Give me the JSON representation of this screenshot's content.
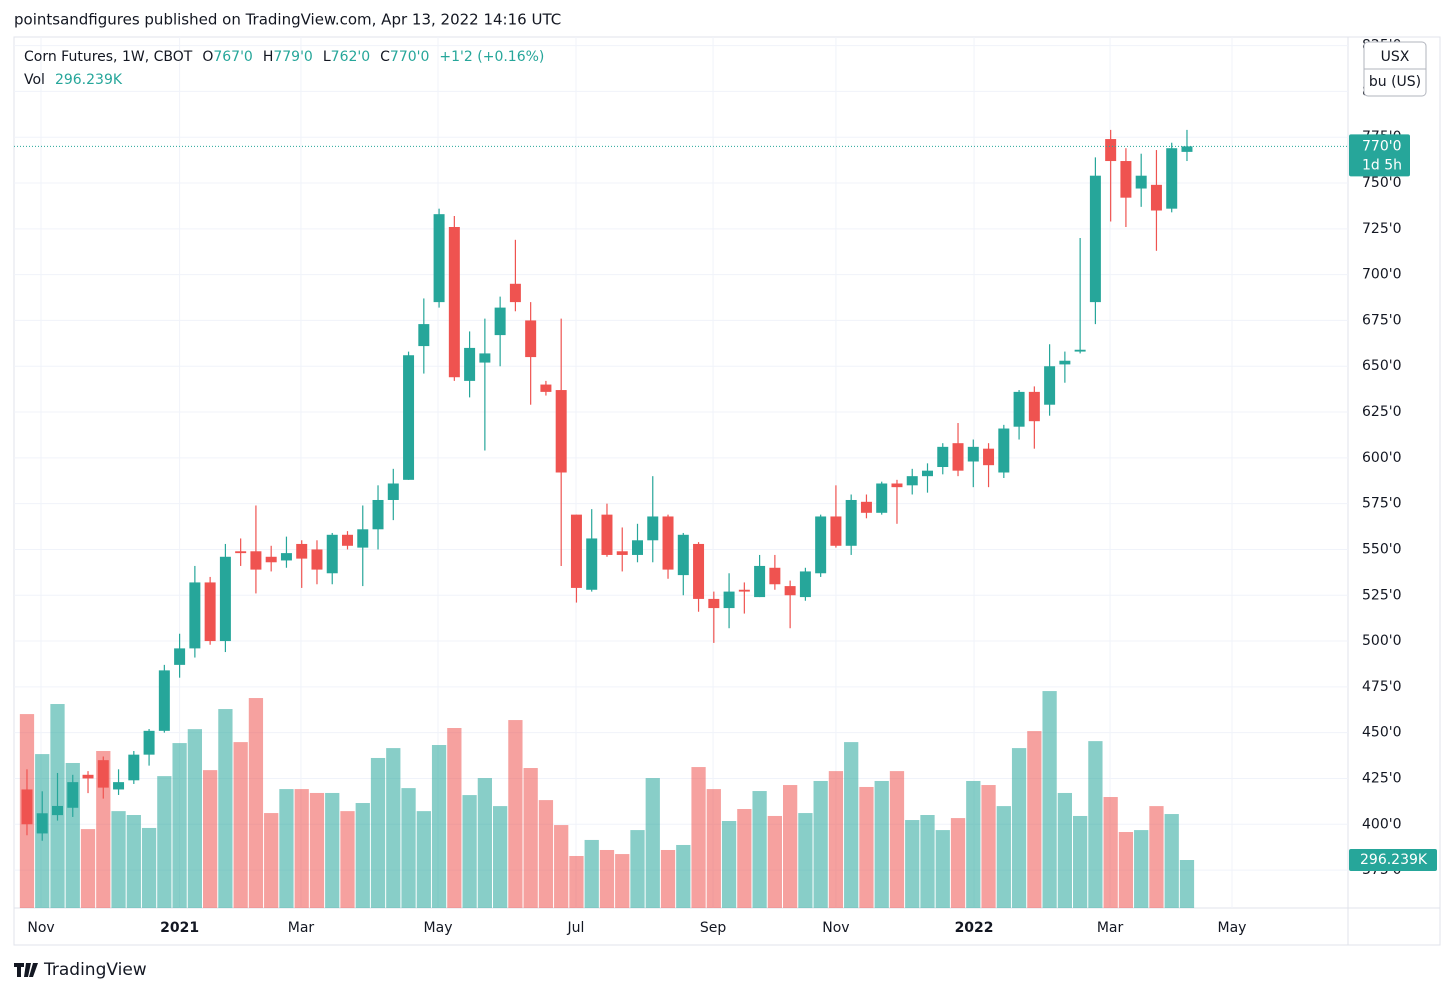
{
  "chart_data": {
    "type": "candlestick",
    "publisher": "pointsandfigures published on TradingView.com, Apr 13, 2022 14:16 UTC",
    "title": "Corn Futures, 1W, CBOT",
    "legend": {
      "ohlc": [
        {
          "key": "O",
          "label": "767'0"
        },
        {
          "key": "H",
          "label": "779'0"
        },
        {
          "key": "L",
          "label": "762'0"
        },
        {
          "key": "C",
          "label": "770'0"
        }
      ],
      "change": "+1'2 (+0.16%)",
      "volume_name": "Vol",
      "volume_label": "296.239K"
    },
    "unit_labels": [
      "USX",
      "bu (US)"
    ],
    "countdown": "1d 5h",
    "brand": "TradingView",
    "up_color": "#26a69a",
    "down_color": "#ef5350",
    "categories": [
      null,
      null,
      null,
      null,
      null,
      null,
      null,
      null,
      null,
      null,
      null,
      null,
      null,
      null,
      null,
      null,
      null,
      null,
      null,
      null,
      null,
      null,
      null,
      null,
      null,
      null,
      null,
      null,
      null,
      null,
      null,
      null,
      null,
      null,
      null,
      null,
      null,
      null,
      null,
      null,
      null,
      null,
      null,
      null,
      null,
      null,
      null,
      null,
      null,
      null,
      null,
      null,
      null,
      null,
      null,
      null,
      null,
      null,
      null,
      null,
      null,
      null,
      null,
      null,
      null,
      null,
      null,
      null,
      null,
      null,
      null,
      null,
      null,
      null,
      null,
      null,
      null
    ],
    "open": [
      419,
      395,
      405,
      409,
      427,
      435,
      419,
      424,
      438,
      451,
      487,
      496,
      532,
      500,
      549,
      549,
      546,
      544,
      553,
      550,
      537,
      558,
      551,
      561,
      577,
      588,
      661,
      685,
      726,
      642,
      652,
      667,
      695,
      675,
      640,
      637,
      569,
      528,
      569,
      549,
      547,
      555,
      568,
      536,
      553,
      523,
      518,
      528,
      524,
      540,
      530,
      524,
      537,
      568,
      552,
      576,
      570,
      586,
      585,
      590,
      595,
      608,
      598,
      605,
      592,
      617,
      636,
      629,
      651,
      658,
      685,
      774,
      762,
      747,
      749,
      736,
      767
    ],
    "high": [
      430,
      418,
      428,
      427,
      429,
      437,
      430,
      440,
      452,
      487,
      504,
      541,
      535,
      553,
      556,
      574,
      552,
      557,
      555,
      555,
      559,
      560,
      574,
      585,
      594,
      658,
      687,
      736,
      732,
      669,
      676,
      688,
      719,
      685,
      642,
      676,
      569,
      572,
      575,
      562,
      564,
      590,
      569,
      559,
      554,
      527,
      537,
      532,
      547,
      547,
      533,
      540,
      569,
      585,
      580,
      580,
      587,
      588,
      594,
      597,
      608,
      619,
      610,
      608,
      618,
      637,
      639,
      662,
      658,
      720,
      764,
      779,
      769,
      766,
      768,
      772,
      779
    ],
    "low": [
      394,
      391,
      402,
      404,
      417,
      414,
      416,
      422,
      432,
      450,
      480,
      491,
      498,
      494,
      541,
      526,
      538,
      540,
      529,
      531,
      531,
      550,
      530,
      550,
      566,
      588,
      646,
      682,
      642,
      633,
      604,
      650,
      680,
      629,
      634,
      541,
      521,
      527,
      546,
      538,
      543,
      543,
      534,
      525,
      516,
      499,
      507,
      515,
      524,
      528,
      507,
      522,
      535,
      551,
      547,
      567,
      569,
      564,
      580,
      581,
      591,
      590,
      584,
      584,
      589,
      610,
      605,
      623,
      641,
      657,
      673,
      729,
      726,
      737,
      713,
      734,
      762
    ],
    "close": [
      400,
      406,
      410,
      423,
      425,
      420,
      423,
      438,
      451,
      484,
      496,
      532,
      500,
      546,
      548,
      539,
      543,
      548,
      545,
      539,
      558,
      552,
      561,
      577,
      586,
      656,
      673,
      733,
      644,
      660,
      657,
      682,
      685,
      655,
      636,
      592,
      529,
      556,
      547,
      547,
      555,
      568,
      539,
      558,
      523,
      518,
      527,
      527,
      541,
      531,
      525,
      538,
      568,
      552,
      577,
      570,
      586,
      584,
      590,
      593,
      606,
      593,
      606,
      596,
      616,
      636,
      620,
      650,
      653,
      659,
      754,
      762,
      742,
      754,
      735,
      769,
      770
    ],
    "volume": [
      1197000,
      950000,
      1259000,
      895000,
      487000,
      969000,
      598000,
      574000,
      494000,
      814000,
      1018000,
      1104000,
      851000,
      1228000,
      1024000,
      1296000,
      586000,
      734000,
      734000,
      710000,
      710000,
      598000,
      648000,
      926000,
      987000,
      740000,
      598000,
      1006000,
      1111000,
      697000,
      802000,
      629000,
      1160000,
      864000,
      666000,
      512000,
      321000,
      420000,
      358000,
      333000,
      481000,
      802000,
      358000,
      389000,
      870000,
      734000,
      537000,
      611000,
      722000,
      568000,
      759000,
      586000,
      784000,
      845000,
      1024000,
      747000,
      784000,
      845000,
      543000,
      574000,
      481000,
      555000,
      784000,
      759000,
      629000,
      987000,
      1092000,
      1339000,
      710000,
      568000,
      1030000,
      685000,
      469000,
      481000,
      629000,
      580000,
      296239
    ],
    "last_price": 770,
    "last_price_label": "770'0",
    "xlim": [
      -0.85,
      86.55
    ],
    "xticks": [
      {
        "value": 0.92,
        "label": "Nov"
      },
      {
        "value": 10.0,
        "label": "2021"
      },
      {
        "value": 17.95,
        "label": "Mar"
      },
      {
        "value": 26.93,
        "label": "May"
      },
      {
        "value": 35.97,
        "label": "Jul"
      },
      {
        "value": 44.95,
        "label": "Sep"
      },
      {
        "value": 53.0,
        "label": "Nov"
      },
      {
        "value": 62.05,
        "label": "2022"
      },
      {
        "value": 70.96,
        "label": "Mar"
      },
      {
        "value": 78.95,
        "label": "May"
      }
    ],
    "bold_xticks": [
      "2021",
      "2022"
    ],
    "ylim": [
      354.3,
      829.7
    ],
    "yticks": [
      {
        "value": 375,
        "label": "375'0"
      },
      {
        "value": 400,
        "label": "400'0"
      },
      {
        "value": 425,
        "label": "425'0"
      },
      {
        "value": 450,
        "label": "450'0"
      },
      {
        "value": 475,
        "label": "475'0"
      },
      {
        "value": 500,
        "label": "500'0"
      },
      {
        "value": 525,
        "label": "525'0"
      },
      {
        "value": 550,
        "label": "550'0"
      },
      {
        "value": 575,
        "label": "575'0"
      },
      {
        "value": 600,
        "label": "600'0"
      },
      {
        "value": 625,
        "label": "625'0"
      },
      {
        "value": 650,
        "label": "650'0"
      },
      {
        "value": 675,
        "label": "675'0"
      },
      {
        "value": 700,
        "label": "700'0"
      },
      {
        "value": 725,
        "label": "725'0"
      },
      {
        "value": 750,
        "label": "750'0"
      },
      {
        "value": 775,
        "label": "775'0"
      },
      {
        "value": 800,
        "label": "800'0"
      },
      {
        "value": 825,
        "label": "825'0"
      }
    ],
    "y2lim": [
      0,
      5376000
    ],
    "grid": true
  }
}
